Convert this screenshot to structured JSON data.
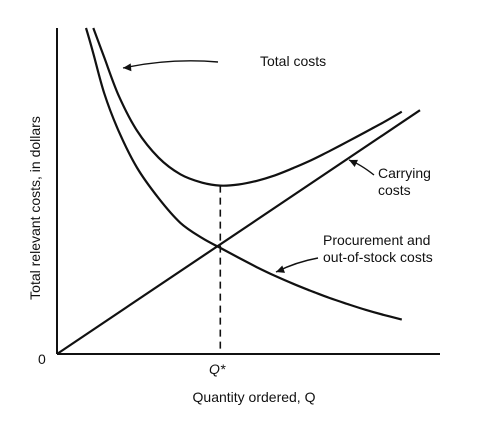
{
  "chart_data": {
    "type": "line",
    "title": "",
    "xlabel": "Quantity ordered, Q",
    "ylabel": "Total relevant costs, in dollars",
    "origin_label": "0",
    "x_tick_label": "Q*",
    "grid": false,
    "legend": "none",
    "xlim": [
      0,
      10
    ],
    "ylim": [
      0,
      9
    ],
    "optimum_x": 4.5,
    "series": [
      {
        "name": "Total costs",
        "label_lines": [
          "Total costs"
        ],
        "x": [
          1.0,
          1.3,
          1.7,
          2.2,
          2.8,
          3.4,
          4.0,
          4.5,
          5.0,
          5.5,
          6.0,
          6.5,
          7.0,
          7.5,
          8.0,
          8.5,
          9.0,
          9.5
        ],
        "y": [
          9.0,
          8.19,
          7.13,
          6.17,
          5.42,
          4.96,
          4.73,
          4.65,
          4.68,
          4.78,
          4.93,
          5.13,
          5.35,
          5.6,
          5.86,
          6.13,
          6.4,
          6.69
        ]
      },
      {
        "name": "Carrying costs",
        "label_lines": [
          "Carrying",
          "costs"
        ],
        "x": [
          0.0,
          10.0
        ],
        "y": [
          0.0,
          6.73
        ]
      },
      {
        "name": "Procurement and out-of-stock costs",
        "label_lines": [
          "Procurement and",
          "out-of-stock costs"
        ],
        "x": [
          0.8,
          1.0,
          1.3,
          1.7,
          2.2,
          2.8,
          3.4,
          4.0,
          4.5,
          5.0,
          5.5,
          6.0,
          6.5,
          7.0,
          7.5,
          8.0,
          8.5,
          9.0,
          9.5
        ],
        "y": [
          9.0,
          8.3,
          7.2,
          6.15,
          5.15,
          4.3,
          3.62,
          3.2,
          2.93,
          2.66,
          2.4,
          2.16,
          1.94,
          1.74,
          1.55,
          1.38,
          1.22,
          1.08,
          0.95
        ]
      }
    ]
  }
}
